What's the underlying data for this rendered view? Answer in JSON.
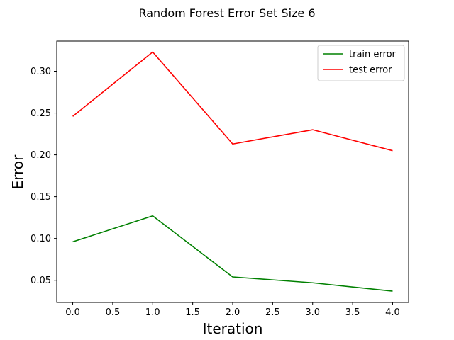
{
  "chart_data": {
    "type": "line",
    "title": "Random Forest Error Set Size 6",
    "xlabel": "Iteration",
    "ylabel": "Error",
    "x": [
      0,
      1,
      2,
      3,
      4
    ],
    "xlim": [
      -0.2,
      4.2
    ],
    "ylim": [
      0.0235,
      0.336
    ],
    "xticks": [
      0.0,
      0.5,
      1.0,
      1.5,
      2.0,
      2.5,
      3.0,
      3.5,
      4.0
    ],
    "xtick_labels": [
      "0.0",
      "0.5",
      "1.0",
      "1.5",
      "2.0",
      "2.5",
      "3.0",
      "3.5",
      "4.0"
    ],
    "yticks": [
      0.05,
      0.1,
      0.15,
      0.2,
      0.25,
      0.3
    ],
    "ytick_labels": [
      "0.05",
      "0.10",
      "0.15",
      "0.20",
      "0.25",
      "0.30"
    ],
    "grid": false,
    "legend_position": "top-right",
    "series": [
      {
        "name": "train error",
        "color": "#008000",
        "values": [
          0.096,
          0.127,
          0.054,
          0.047,
          0.037
        ]
      },
      {
        "name": "test error",
        "color": "#ff0000",
        "values": [
          0.246,
          0.323,
          0.213,
          0.23,
          0.205
        ]
      }
    ]
  }
}
